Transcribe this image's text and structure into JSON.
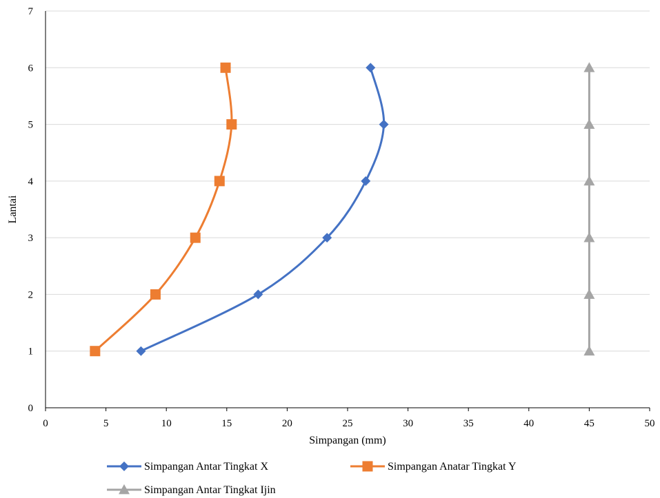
{
  "chart_data": {
    "type": "line",
    "xlabel": "Simpangan (mm)",
    "ylabel": "Lantai",
    "xlim": [
      0,
      50
    ],
    "ylim": [
      0,
      7
    ],
    "xticks": [
      "0",
      "5",
      "10",
      "15",
      "20",
      "25",
      "30",
      "35",
      "40",
      "45",
      "50"
    ],
    "yticks": [
      "0",
      "1",
      "2",
      "3",
      "4",
      "5",
      "6",
      "7"
    ],
    "grid": "horizontal",
    "legend_position": "bottom",
    "smooth": true,
    "series": [
      {
        "name": "Simpangan Antar Tingkat X",
        "color": "#4472C4",
        "marker": "diamond",
        "points": [
          [
            7.9,
            1
          ],
          [
            17.6,
            2
          ],
          [
            23.3,
            3
          ],
          [
            26.5,
            4
          ],
          [
            28.0,
            5
          ],
          [
            26.9,
            6
          ]
        ]
      },
      {
        "name": "Simpangan Anatar Tingkat Y",
        "color": "#ED7D31",
        "marker": "square",
        "points": [
          [
            4.1,
            1
          ],
          [
            9.1,
            2
          ],
          [
            12.4,
            3
          ],
          [
            14.4,
            4
          ],
          [
            15.4,
            5
          ],
          [
            14.9,
            6
          ]
        ]
      },
      {
        "name": "Simpangan Antar Tingkat Ijin",
        "color": "#A5A5A5",
        "marker": "triangle",
        "points": [
          [
            45,
            1
          ],
          [
            45,
            2
          ],
          [
            45,
            3
          ],
          [
            45,
            4
          ],
          [
            45,
            5
          ],
          [
            45,
            6
          ]
        ]
      }
    ]
  }
}
